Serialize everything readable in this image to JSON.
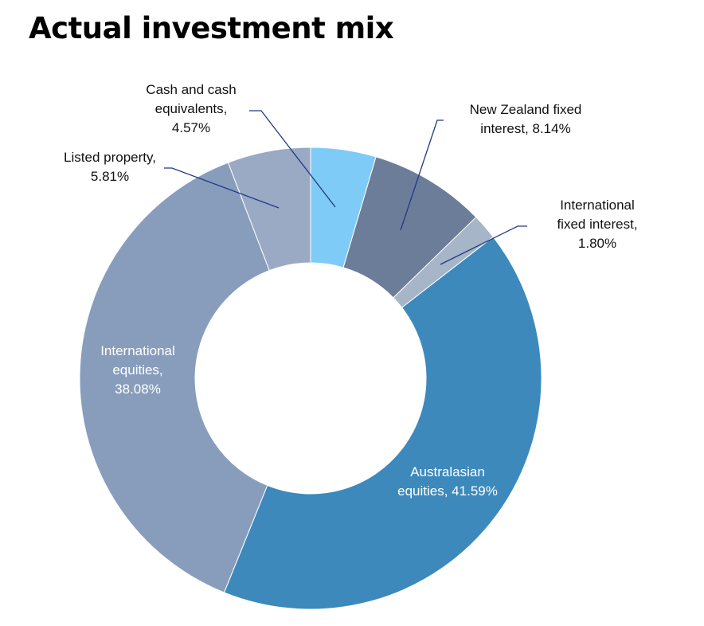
{
  "chart_data": {
    "type": "pie",
    "variant": "donut",
    "title": "Actual investment mix",
    "start_angle_deg": 0,
    "direction": "clockwise",
    "label_style": "category, percent",
    "slices": [
      {
        "label": "Cash and cash equivalents",
        "value": 4.57,
        "display": "4.57%",
        "color": "#7dcbf6",
        "label_lines": [
          "Cash and cash",
          "equivalents,",
          "4.57%"
        ],
        "label_color": "#111111",
        "leader": true
      },
      {
        "label": "New Zealand fixed interest",
        "value": 8.14,
        "display": "8.14%",
        "color": "#6c7d99",
        "label_lines": [
          "New Zealand fixed",
          "interest, 8.14%"
        ],
        "label_color": "#111111",
        "leader": true
      },
      {
        "label": "International fixed interest",
        "value": 1.8,
        "display": "1.80%",
        "color": "#a6b5c7",
        "label_lines": [
          "International",
          "fixed interest,",
          "1.80%"
        ],
        "label_color": "#111111",
        "leader": true
      },
      {
        "label": "Australasian equities",
        "value": 41.59,
        "display": "41.59%",
        "color": "#3d89bc",
        "label_lines": [
          "Australasian",
          "equities, 41.59%"
        ],
        "label_color": "#ffffff",
        "leader": false
      },
      {
        "label": "International equities",
        "value": 38.08,
        "display": "38.08%",
        "color": "#889dbc",
        "label_lines": [
          "International",
          "equities,",
          "38.08%"
        ],
        "label_color": "#ffffff",
        "leader": false
      },
      {
        "label": "Listed property",
        "value": 5.81,
        "display": "5.81%",
        "color": "#9aa9c4",
        "label_lines": [
          "Listed property,",
          "5.81%"
        ],
        "label_color": "#111111",
        "leader": true
      }
    ],
    "leader_line_color": "#1f3a80"
  }
}
